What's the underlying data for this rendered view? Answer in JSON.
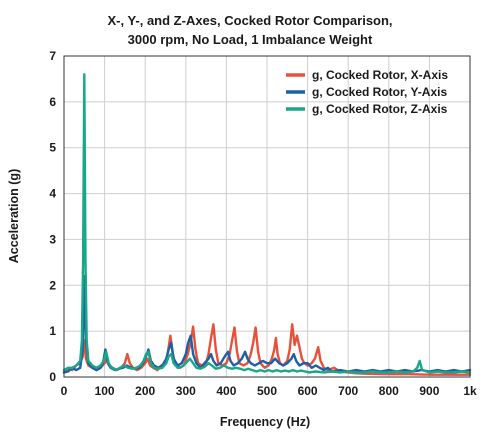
{
  "chart_data": {
    "type": "line",
    "title_lines": [
      "X-, Y-, and Z-Axes, Cocked Rotor Comparison,",
      "3000 rpm, No Load, 1 Imbalance Weight"
    ],
    "xlabel": "Frequency (Hz)",
    "ylabel": "Acceleration (g)",
    "xlim": [
      0,
      1000
    ],
    "ylim": [
      0,
      7
    ],
    "x_ticks": [
      "0",
      "100",
      "200",
      "300",
      "400",
      "500",
      "600",
      "700",
      "800",
      "900",
      "1k"
    ],
    "y_ticks": [
      "0",
      "1",
      "2",
      "3",
      "4",
      "5",
      "6",
      "7"
    ],
    "grid": true,
    "legend_position": "top-right",
    "series": [
      {
        "name": "g, Cocked Rotor, X-Axis",
        "color": "#e8503a",
        "points": [
          [
            0,
            0.1
          ],
          [
            10,
            0.2
          ],
          [
            20,
            0.15
          ],
          [
            30,
            0.25
          ],
          [
            40,
            0.3
          ],
          [
            46,
            0.45
          ],
          [
            50,
            0.8
          ],
          [
            54,
            0.4
          ],
          [
            60,
            0.25
          ],
          [
            70,
            0.2
          ],
          [
            80,
            0.15
          ],
          [
            90,
            0.2
          ],
          [
            100,
            0.3
          ],
          [
            106,
            0.4
          ],
          [
            112,
            0.25
          ],
          [
            120,
            0.2
          ],
          [
            130,
            0.15
          ],
          [
            140,
            0.2
          ],
          [
            150,
            0.3
          ],
          [
            156,
            0.5
          ],
          [
            162,
            0.3
          ],
          [
            170,
            0.2
          ],
          [
            180,
            0.15
          ],
          [
            190,
            0.2
          ],
          [
            200,
            0.3
          ],
          [
            206,
            0.4
          ],
          [
            212,
            0.25
          ],
          [
            220,
            0.2
          ],
          [
            230,
            0.15
          ],
          [
            240,
            0.25
          ],
          [
            250,
            0.3
          ],
          [
            256,
            0.55
          ],
          [
            262,
            0.9
          ],
          [
            268,
            0.5
          ],
          [
            275,
            0.25
          ],
          [
            285,
            0.2
          ],
          [
            295,
            0.25
          ],
          [
            305,
            0.5
          ],
          [
            312,
            0.75
          ],
          [
            318,
            1.1
          ],
          [
            324,
            0.6
          ],
          [
            330,
            0.3
          ],
          [
            340,
            0.25
          ],
          [
            350,
            0.3
          ],
          [
            356,
            0.5
          ],
          [
            362,
            0.85
          ],
          [
            368,
            1.15
          ],
          [
            374,
            0.6
          ],
          [
            380,
            0.3
          ],
          [
            390,
            0.25
          ],
          [
            400,
            0.3
          ],
          [
            408,
            0.5
          ],
          [
            414,
            0.8
          ],
          [
            420,
            1.08
          ],
          [
            426,
            0.55
          ],
          [
            432,
            0.3
          ],
          [
            442,
            0.25
          ],
          [
            452,
            0.3
          ],
          [
            460,
            0.5
          ],
          [
            466,
            0.75
          ],
          [
            472,
            1.08
          ],
          [
            478,
            0.55
          ],
          [
            484,
            0.3
          ],
          [
            494,
            0.2
          ],
          [
            504,
            0.25
          ],
          [
            512,
            0.4
          ],
          [
            518,
            0.6
          ],
          [
            522,
            0.85
          ],
          [
            526,
            0.5
          ],
          [
            532,
            0.3
          ],
          [
            540,
            0.25
          ],
          [
            550,
            0.35
          ],
          [
            556,
            0.6
          ],
          [
            562,
            1.15
          ],
          [
            568,
            0.7
          ],
          [
            574,
            0.9
          ],
          [
            580,
            0.65
          ],
          [
            586,
            0.4
          ],
          [
            592,
            0.3
          ],
          [
            600,
            0.25
          ],
          [
            610,
            0.3
          ],
          [
            618,
            0.4
          ],
          [
            626,
            0.65
          ],
          [
            632,
            0.35
          ],
          [
            640,
            0.2
          ],
          [
            650,
            0.15
          ],
          [
            665,
            0.2
          ],
          [
            680,
            0.12
          ],
          [
            700,
            0.1
          ],
          [
            720,
            0.08
          ],
          [
            750,
            0.07
          ],
          [
            800,
            0.06
          ],
          [
            850,
            0.06
          ],
          [
            900,
            0.05
          ],
          [
            950,
            0.05
          ],
          [
            1000,
            0.05
          ]
        ]
      },
      {
        "name": "g, Cocked Rotor, Y-Axis",
        "color": "#1f5ea8",
        "points": [
          [
            0,
            0.1
          ],
          [
            10,
            0.12
          ],
          [
            20,
            0.2
          ],
          [
            30,
            0.15
          ],
          [
            40,
            0.2
          ],
          [
            46,
            0.6
          ],
          [
            50,
            2.2
          ],
          [
            54,
            0.8
          ],
          [
            60,
            0.3
          ],
          [
            70,
            0.2
          ],
          [
            80,
            0.15
          ],
          [
            90,
            0.2
          ],
          [
            96,
            0.3
          ],
          [
            102,
            0.6
          ],
          [
            108,
            0.3
          ],
          [
            115,
            0.2
          ],
          [
            125,
            0.15
          ],
          [
            135,
            0.18
          ],
          [
            145,
            0.2
          ],
          [
            155,
            0.25
          ],
          [
            165,
            0.2
          ],
          [
            175,
            0.18
          ],
          [
            185,
            0.2
          ],
          [
            195,
            0.3
          ],
          [
            202,
            0.45
          ],
          [
            208,
            0.6
          ],
          [
            214,
            0.35
          ],
          [
            222,
            0.25
          ],
          [
            232,
            0.2
          ],
          [
            242,
            0.25
          ],
          [
            252,
            0.4
          ],
          [
            258,
            0.6
          ],
          [
            264,
            0.75
          ],
          [
            270,
            0.4
          ],
          [
            280,
            0.25
          ],
          [
            290,
            0.3
          ],
          [
            300,
            0.5
          ],
          [
            306,
            0.75
          ],
          [
            312,
            0.9
          ],
          [
            318,
            0.5
          ],
          [
            326,
            0.3
          ],
          [
            336,
            0.2
          ],
          [
            346,
            0.3
          ],
          [
            356,
            0.4
          ],
          [
            362,
            0.5
          ],
          [
            368,
            0.35
          ],
          [
            376,
            0.25
          ],
          [
            386,
            0.3
          ],
          [
            396,
            0.45
          ],
          [
            404,
            0.55
          ],
          [
            410,
            0.35
          ],
          [
            418,
            0.25
          ],
          [
            428,
            0.3
          ],
          [
            438,
            0.4
          ],
          [
            446,
            0.55
          ],
          [
            452,
            0.4
          ],
          [
            460,
            0.3
          ],
          [
            470,
            0.25
          ],
          [
            480,
            0.3
          ],
          [
            490,
            0.35
          ],
          [
            500,
            0.3
          ],
          [
            510,
            0.3
          ],
          [
            520,
            0.4
          ],
          [
            530,
            0.3
          ],
          [
            540,
            0.25
          ],
          [
            550,
            0.3
          ],
          [
            560,
            0.4
          ],
          [
            566,
            0.5
          ],
          [
            572,
            0.35
          ],
          [
            580,
            0.25
          ],
          [
            590,
            0.3
          ],
          [
            600,
            0.3
          ],
          [
            610,
            0.2
          ],
          [
            620,
            0.25
          ],
          [
            630,
            0.2
          ],
          [
            640,
            0.15
          ],
          [
            650,
            0.2
          ],
          [
            660,
            0.12
          ],
          [
            680,
            0.15
          ],
          [
            700,
            0.12
          ],
          [
            720,
            0.15
          ],
          [
            740,
            0.12
          ],
          [
            760,
            0.15
          ],
          [
            780,
            0.12
          ],
          [
            800,
            0.15
          ],
          [
            820,
            0.12
          ],
          [
            840,
            0.15
          ],
          [
            860,
            0.12
          ],
          [
            880,
            0.15
          ],
          [
            900,
            0.12
          ],
          [
            920,
            0.15
          ],
          [
            940,
            0.12
          ],
          [
            960,
            0.15
          ],
          [
            980,
            0.12
          ],
          [
            1000,
            0.15
          ]
        ]
      },
      {
        "name": "g, Cocked Rotor, Z-Axis",
        "color": "#18a888",
        "points": [
          [
            0,
            0.15
          ],
          [
            10,
            0.2
          ],
          [
            20,
            0.2
          ],
          [
            30,
            0.25
          ],
          [
            40,
            0.35
          ],
          [
            44,
            0.8
          ],
          [
            47,
            2.5
          ],
          [
            50,
            6.6
          ],
          [
            53,
            2.5
          ],
          [
            56,
            0.8
          ],
          [
            60,
            0.35
          ],
          [
            70,
            0.25
          ],
          [
            80,
            0.2
          ],
          [
            90,
            0.25
          ],
          [
            98,
            0.35
          ],
          [
            104,
            0.55
          ],
          [
            110,
            0.3
          ],
          [
            118,
            0.2
          ],
          [
            128,
            0.15
          ],
          [
            138,
            0.2
          ],
          [
            148,
            0.25
          ],
          [
            158,
            0.2
          ],
          [
            168,
            0.18
          ],
          [
            178,
            0.2
          ],
          [
            188,
            0.25
          ],
          [
            196,
            0.35
          ],
          [
            202,
            0.5
          ],
          [
            208,
            0.55
          ],
          [
            214,
            0.3
          ],
          [
            222,
            0.2
          ],
          [
            232,
            0.18
          ],
          [
            242,
            0.2
          ],
          [
            252,
            0.3
          ],
          [
            258,
            0.45
          ],
          [
            264,
            0.5
          ],
          [
            270,
            0.3
          ],
          [
            280,
            0.2
          ],
          [
            290,
            0.22
          ],
          [
            300,
            0.3
          ],
          [
            310,
            0.4
          ],
          [
            318,
            0.3
          ],
          [
            326,
            0.2
          ],
          [
            336,
            0.18
          ],
          [
            346,
            0.22
          ],
          [
            356,
            0.3
          ],
          [
            364,
            0.25
          ],
          [
            374,
            0.18
          ],
          [
            384,
            0.2
          ],
          [
            394,
            0.25
          ],
          [
            404,
            0.2
          ],
          [
            414,
            0.18
          ],
          [
            424,
            0.2
          ],
          [
            434,
            0.18
          ],
          [
            444,
            0.15
          ],
          [
            454,
            0.18
          ],
          [
            464,
            0.15
          ],
          [
            474,
            0.12
          ],
          [
            484,
            0.15
          ],
          [
            494,
            0.12
          ],
          [
            504,
            0.15
          ],
          [
            514,
            0.12
          ],
          [
            524,
            0.15
          ],
          [
            534,
            0.12
          ],
          [
            544,
            0.14
          ],
          [
            554,
            0.12
          ],
          [
            564,
            0.15
          ],
          [
            574,
            0.12
          ],
          [
            584,
            0.14
          ],
          [
            594,
            0.12
          ],
          [
            604,
            0.1
          ],
          [
            620,
            0.12
          ],
          [
            640,
            0.1
          ],
          [
            660,
            0.12
          ],
          [
            680,
            0.1
          ],
          [
            700,
            0.12
          ],
          [
            720,
            0.1
          ],
          [
            740,
            0.1
          ],
          [
            760,
            0.12
          ],
          [
            780,
            0.1
          ],
          [
            800,
            0.1
          ],
          [
            820,
            0.12
          ],
          [
            840,
            0.1
          ],
          [
            860,
            0.12
          ],
          [
            870,
            0.2
          ],
          [
            876,
            0.35
          ],
          [
            882,
            0.15
          ],
          [
            900,
            0.1
          ],
          [
            920,
            0.12
          ],
          [
            940,
            0.1
          ],
          [
            960,
            0.1
          ],
          [
            980,
            0.12
          ],
          [
            1000,
            0.1
          ]
        ]
      }
    ]
  }
}
